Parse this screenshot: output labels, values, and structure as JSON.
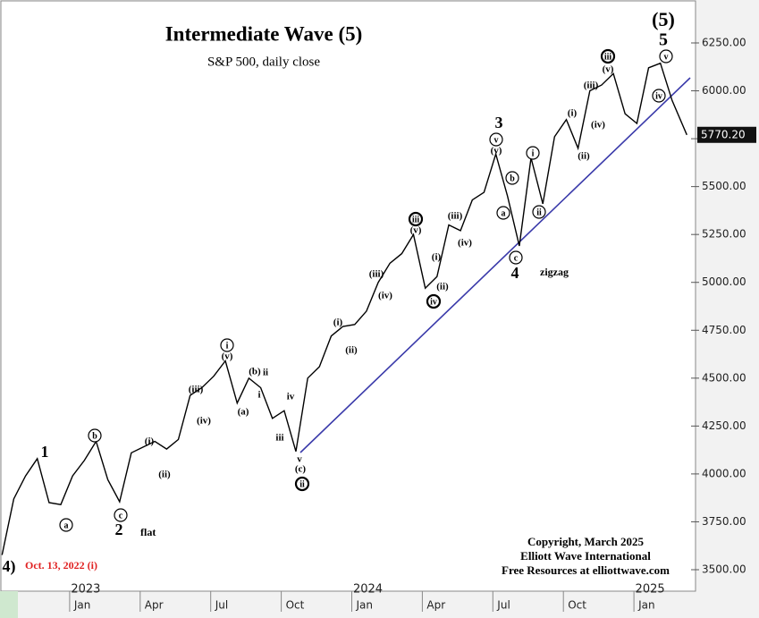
{
  "chart_data": {
    "type": "line",
    "title": "Intermediate Wave (5)",
    "subtitle": "S&P 500, daily close",
    "x": [
      "2022-10",
      "2022-10",
      "2022-11",
      "2022-11",
      "2022-12",
      "2022-12",
      "2023-01",
      "2023-01",
      "2023-02",
      "2023-02",
      "2023-03",
      "2023-03",
      "2023-04",
      "2023-04",
      "2023-05",
      "2023-05",
      "2023-06",
      "2023-06",
      "2023-07",
      "2023-07",
      "2023-08",
      "2023-08",
      "2023-09",
      "2023-09",
      "2023-10",
      "2023-10",
      "2023-11",
      "2023-11",
      "2023-12",
      "2023-12",
      "2024-01",
      "2024-01",
      "2024-02",
      "2024-02",
      "2024-03",
      "2024-03",
      "2024-04",
      "2024-04",
      "2024-05",
      "2024-05",
      "2024-06",
      "2024-06",
      "2024-07",
      "2024-07",
      "2024-08",
      "2024-08",
      "2024-09",
      "2024-09",
      "2024-10",
      "2024-10",
      "2024-11",
      "2024-11",
      "2024-12",
      "2024-12",
      "2025-01",
      "2025-01",
      "2025-02",
      "2025-02",
      "2025-03"
    ],
    "series": [
      {
        "name": "S&P 500",
        "color": "#000000",
        "values": [
          3577,
          3870,
          3990,
          4080,
          3850,
          3840,
          3990,
          4070,
          4170,
          3970,
          3855,
          4110,
          4140,
          4170,
          4130,
          4180,
          4410,
          4450,
          4510,
          4590,
          4370,
          4500,
          4450,
          4290,
          4330,
          4117,
          4500,
          4560,
          4720,
          4770,
          4780,
          4850,
          5000,
          5100,
          5150,
          5250,
          4970,
          5030,
          5300,
          5270,
          5430,
          5470,
          5670,
          5450,
          5190,
          5650,
          5410,
          5760,
          5850,
          5700,
          6000,
          6030,
          6090,
          5880,
          5830,
          6120,
          6144,
          5950,
          5770.2
        ]
      }
    ],
    "last_value_label": "5770.20",
    "ylim": [
      3430,
      6450
    ],
    "yticks": [
      {
        "value": 3500,
        "label": "3500.00"
      },
      {
        "value": 3750,
        "label": "3750.00"
      },
      {
        "value": 4000,
        "label": "4000.00"
      },
      {
        "value": 4250,
        "label": "4250.00"
      },
      {
        "value": 4500,
        "label": "4500.00"
      },
      {
        "value": 4750,
        "label": "4750.00"
      },
      {
        "value": 5000,
        "label": "5000.00"
      },
      {
        "value": 5250,
        "label": "5250.00"
      },
      {
        "value": 5500,
        "label": "5500.00"
      },
      {
        "value": 5750,
        "label": "5750.00"
      },
      {
        "value": 6000,
        "label": "6000.00"
      },
      {
        "value": 6250,
        "label": "6250.00"
      }
    ],
    "xticks": [
      {
        "value": "2023-01",
        "label": "Jan"
      },
      {
        "value": "2023-04",
        "label": "Apr"
      },
      {
        "value": "2023-07",
        "label": "Jul"
      },
      {
        "value": "2023-10",
        "label": "Oct"
      },
      {
        "value": "2024-01",
        "label": "Jan"
      },
      {
        "value": "2024-04",
        "label": "Apr"
      },
      {
        "value": "2024-07",
        "label": "Jul"
      },
      {
        "value": "2024-10",
        "label": "Oct"
      },
      {
        "value": "2025-01",
        "label": "Jan"
      }
    ],
    "year_labels": [
      {
        "value": "2023-01",
        "label": "2023"
      },
      {
        "value": "2024-01",
        "label": "2024"
      },
      {
        "value": "2025-01",
        "label": "2025"
      }
    ],
    "start_note": "Oct. 13, 2022 (i)",
    "copyright": [
      "Copyright, March 2025",
      "Elliott Wave International",
      "Free Resources at elliottwave.com"
    ],
    "annotations": [
      "(5)",
      "5",
      "1",
      "2",
      "flat",
      "3",
      "4",
      "zigzag",
      "4)",
      "a",
      "b",
      "c",
      "(i)",
      "(ii)",
      "(iii)",
      "(iv)",
      "i",
      "(v)",
      "(a)",
      "(b)",
      "ii",
      "i",
      "iv",
      "iii",
      "v",
      "(c)",
      "ii",
      "(i)",
      "(ii)",
      "(iii)",
      "(iv)",
      "iii",
      "(v)",
      "(i)",
      "(ii)",
      "iv",
      "(iii)",
      "(iv)",
      "v",
      "(v)",
      "b",
      "a",
      "c",
      "i",
      "ii",
      "(i)",
      "(ii)",
      "(iii)",
      "(iv)",
      "iii",
      "(v)",
      "iv",
      "v"
    ]
  }
}
